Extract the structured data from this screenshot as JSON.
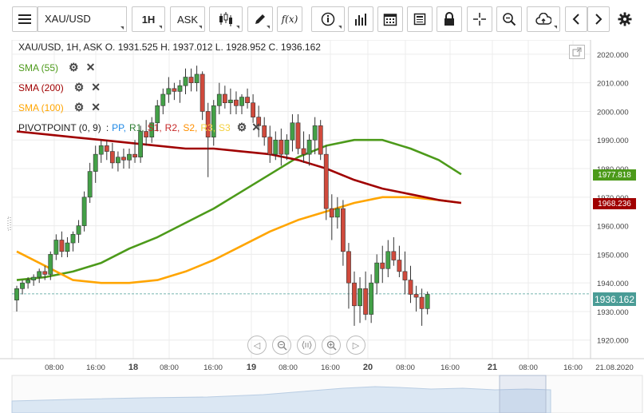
{
  "toolbar": {
    "menu_icon": "hamburger-icon",
    "symbol_value": "XAU/USD",
    "timeframe": "1H",
    "price_type": "ASK",
    "fx_label": "f(x)",
    "icons": [
      "candlestick-icon",
      "pencil-icon",
      "function-icon",
      "info-icon",
      "bars-icon",
      "calendar-icon",
      "news-icon",
      "lock-icon",
      "crosshair-icon",
      "zoom-icon",
      "cloud-upload-icon",
      "arrow-left-icon",
      "arrow-right-icon",
      "gear-icon"
    ]
  },
  "legend": {
    "ohlc": "XAU/USD, 1H, ASK   O. 1931.525 H. 1937.012 L. 1928.952 C. 1936.162",
    "sma55": "SMA (55)",
    "sma200": "SMA (200)",
    "sma100": "SMA (100)",
    "pivot_name": "PIVOTPOINT (0, 9)",
    "pivot_colon": ":",
    "pivot_items": [
      {
        "label": "PP",
        "color": "#1e88e5"
      },
      {
        "label": "R1",
        "color": "#2e7d32"
      },
      {
        "label": "S1",
        "color": "#c62828"
      },
      {
        "label": "R2",
        "color": "#c62828"
      },
      {
        "label": "S2",
        "color": "#ff8f00"
      },
      {
        "label": "R3",
        "color": "#f4d03f"
      },
      {
        "label": "S3",
        "color": "#f4d03f"
      }
    ],
    "colors": {
      "sma55": "#4c9a1a",
      "sma200": "#a00000",
      "sma100": "#ffa500"
    }
  },
  "price_tags": {
    "sma55": "1977.818",
    "sma200": "1968.236",
    "last": "1936.162"
  },
  "chart_data": {
    "type": "candlestick",
    "symbol": "XAU/USD",
    "timeframe": "1H",
    "y_ticks": [
      1920,
      1930,
      1940,
      1950,
      1960,
      1970,
      1980,
      1990,
      2000,
      2010,
      2020
    ],
    "y_tick_labels": [
      "1920.000",
      "1930.000",
      "1940.000",
      "1950.000",
      "1960.000",
      "1970.000",
      "1980.000",
      "1990.000",
      "2000.000",
      "2010.000",
      "2020.000"
    ],
    "ylim": [
      1913.5,
      2025
    ],
    "x_ticks": [
      {
        "label": "08:00",
        "bold": false
      },
      {
        "label": "16:00",
        "bold": false
      },
      {
        "label": "18",
        "bold": true
      },
      {
        "label": "08:00",
        "bold": false
      },
      {
        "label": "16:00",
        "bold": false
      },
      {
        "label": "19",
        "bold": true
      },
      {
        "label": "08:00",
        "bold": false
      },
      {
        "label": "16:00",
        "bold": false
      },
      {
        "label": "20",
        "bold": true
      },
      {
        "label": "08:00",
        "bold": false
      },
      {
        "label": "16:00",
        "bold": false
      },
      {
        "label": "21",
        "bold": true
      },
      {
        "label": "08:00",
        "bold": false
      },
      {
        "label": "16:00",
        "bold": false
      },
      {
        "label": "21.08.2020",
        "bold": false
      }
    ],
    "candles": [
      [
        1934,
        1939,
        1930,
        1938
      ],
      [
        1938,
        1941,
        1936,
        1940
      ],
      [
        1940,
        1942,
        1938,
        1941
      ],
      [
        1941,
        1943,
        1939,
        1942
      ],
      [
        1942,
        1945,
        1940,
        1944
      ],
      [
        1944,
        1946,
        1941,
        1943
      ],
      [
        1943,
        1951,
        1941,
        1950
      ],
      [
        1950,
        1957,
        1948,
        1955
      ],
      [
        1955,
        1958,
        1949,
        1951
      ],
      [
        1951,
        1956,
        1949,
        1954
      ],
      [
        1954,
        1958,
        1951,
        1957
      ],
      [
        1957,
        1962,
        1954,
        1960
      ],
      [
        1960,
        1972,
        1958,
        1970
      ],
      [
        1970,
        1982,
        1968,
        1979
      ],
      [
        1979,
        1988,
        1975,
        1985
      ],
      [
        1985,
        1990,
        1982,
        1988
      ],
      [
        1988,
        1990,
        1983,
        1986
      ],
      [
        1986,
        1989,
        1980,
        1982
      ],
      [
        1982,
        1986,
        1979,
        1984
      ],
      [
        1984,
        1987,
        1980,
        1983
      ],
      [
        1983,
        1987,
        1980,
        1985
      ],
      [
        1985,
        1990,
        1982,
        1984
      ],
      [
        1984,
        1995,
        1982,
        1993
      ],
      [
        1993,
        1997,
        1988,
        1991
      ],
      [
        1991,
        1998,
        1989,
        1996
      ],
      [
        1996,
        2004,
        1993,
        2002
      ],
      [
        2002,
        2008,
        1999,
        2006
      ],
      [
        2006,
        2012,
        2003,
        2008
      ],
      [
        2008,
        2010,
        2004,
        2007
      ],
      [
        2007,
        2011,
        2003,
        2009
      ],
      [
        2009,
        2015,
        2006,
        2012
      ],
      [
        2012,
        2015,
        2007,
        2010
      ],
      [
        2010,
        2016,
        2007,
        2013
      ],
      [
        2013,
        2014,
        1997,
        2000
      ],
      [
        2000,
        2003,
        1977,
        1991
      ],
      [
        1991,
        2004,
        1988,
        2002
      ],
      [
        2002,
        2010,
        1999,
        2006
      ],
      [
        2006,
        2009,
        2001,
        2003
      ],
      [
        2003,
        2008,
        1999,
        2004
      ],
      [
        2004,
        2007,
        1999,
        2002
      ],
      [
        2002,
        2006,
        1999,
        2005
      ],
      [
        2005,
        2008,
        2001,
        2003
      ],
      [
        2003,
        2006,
        1996,
        1998
      ],
      [
        1998,
        2002,
        1991,
        1995
      ],
      [
        1995,
        1998,
        1988,
        1991
      ],
      [
        1991,
        1995,
        1982,
        1985
      ],
      [
        1985,
        1993,
        1983,
        1990
      ],
      [
        1990,
        1994,
        1981,
        1985
      ],
      [
        1985,
        1992,
        1983,
        1990
      ],
      [
        1990,
        1999,
        1986,
        1996
      ],
      [
        1996,
        1999,
        1985,
        1987
      ],
      [
        1987,
        1993,
        1982,
        1985
      ],
      [
        1985,
        1992,
        1981,
        1990
      ],
      [
        1990,
        1998,
        1985,
        1995
      ],
      [
        1995,
        1997,
        1983,
        1985
      ],
      [
        1985,
        1988,
        1962,
        1966
      ],
      [
        1966,
        1971,
        1955,
        1963
      ],
      [
        1963,
        1970,
        1959,
        1966
      ],
      [
        1966,
        1969,
        1946,
        1951
      ],
      [
        1951,
        1954,
        1931,
        1940
      ],
      [
        1940,
        1944,
        1925,
        1932
      ],
      [
        1932,
        1942,
        1926,
        1938
      ],
      [
        1938,
        1944,
        1927,
        1929
      ],
      [
        1929,
        1943,
        1926,
        1940
      ],
      [
        1940,
        1950,
        1936,
        1947
      ],
      [
        1947,
        1953,
        1940,
        1945
      ],
      [
        1945,
        1955,
        1942,
        1951
      ],
      [
        1951,
        1956,
        1946,
        1948
      ],
      [
        1948,
        1953,
        1942,
        1944
      ],
      [
        1944,
        1951,
        1936,
        1941
      ],
      [
        1941,
        1946,
        1933,
        1936
      ],
      [
        1936,
        1939,
        1930,
        1935
      ],
      [
        1935,
        1938,
        1925,
        1931
      ],
      [
        1931,
        1937,
        1929,
        1936
      ]
    ],
    "series": [
      {
        "name": "SMA (55)",
        "color": "#4c9a1a",
        "values": [
          [
            0,
            1941
          ],
          [
            5,
            1942
          ],
          [
            10,
            1944
          ],
          [
            15,
            1947
          ],
          [
            20,
            1952
          ],
          [
            25,
            1956
          ],
          [
            30,
            1961
          ],
          [
            35,
            1966
          ],
          [
            40,
            1972
          ],
          [
            45,
            1978
          ],
          [
            50,
            1984
          ],
          [
            55,
            1988
          ],
          [
            60,
            1990
          ],
          [
            65,
            1990
          ],
          [
            70,
            1987
          ],
          [
            75,
            1983
          ],
          [
            79,
            1978
          ]
        ]
      },
      {
        "name": "SMA (100)",
        "color": "#ffa500",
        "values": [
          [
            0,
            1951
          ],
          [
            5,
            1946
          ],
          [
            10,
            1941
          ],
          [
            15,
            1940
          ],
          [
            20,
            1940
          ],
          [
            25,
            1941
          ],
          [
            30,
            1944
          ],
          [
            35,
            1948
          ],
          [
            40,
            1953
          ],
          [
            45,
            1958
          ],
          [
            50,
            1962
          ],
          [
            55,
            1965
          ],
          [
            60,
            1968
          ],
          [
            65,
            1970
          ],
          [
            70,
            1970
          ],
          [
            75,
            1969
          ],
          [
            79,
            1968
          ]
        ]
      },
      {
        "name": "SMA (200)",
        "color": "#a00000",
        "values": [
          [
            0,
            1993
          ],
          [
            5,
            1992
          ],
          [
            10,
            1991
          ],
          [
            15,
            1990
          ],
          [
            20,
            1989
          ],
          [
            25,
            1988
          ],
          [
            30,
            1987
          ],
          [
            35,
            1987
          ],
          [
            40,
            1986
          ],
          [
            45,
            1985
          ],
          [
            50,
            1983
          ],
          [
            55,
            1980
          ],
          [
            60,
            1976
          ],
          [
            65,
            1973
          ],
          [
            70,
            1971
          ],
          [
            75,
            1969
          ],
          [
            79,
            1968
          ]
        ]
      }
    ],
    "last_price": 1936.162
  }
}
